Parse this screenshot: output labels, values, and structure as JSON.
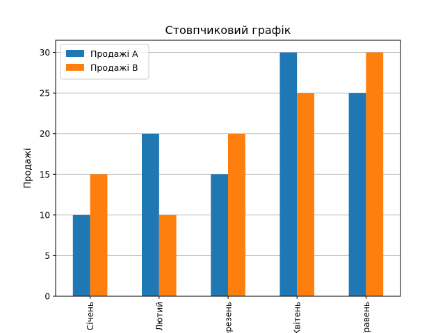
{
  "chart_data": {
    "type": "bar",
    "title": "Стовпчиковий графік",
    "xlabel": "",
    "ylabel": "Продажі",
    "categories": [
      "Січень",
      "Лютий",
      "Березень",
      "Квітень",
      "Травень"
    ],
    "series": [
      {
        "name": "Продажі A",
        "values": [
          10,
          20,
          15,
          30,
          25
        ],
        "color": "#1f77b4"
      },
      {
        "name": "Продажі B",
        "values": [
          15,
          10,
          20,
          25,
          30
        ],
        "color": "#ff7f0e"
      }
    ],
    "ylim": [
      0,
      31.5
    ],
    "yticks": [
      0,
      5,
      10,
      15,
      20,
      25,
      30
    ],
    "grid": "y",
    "legend": "top-left",
    "xtick_rotation": 90
  }
}
